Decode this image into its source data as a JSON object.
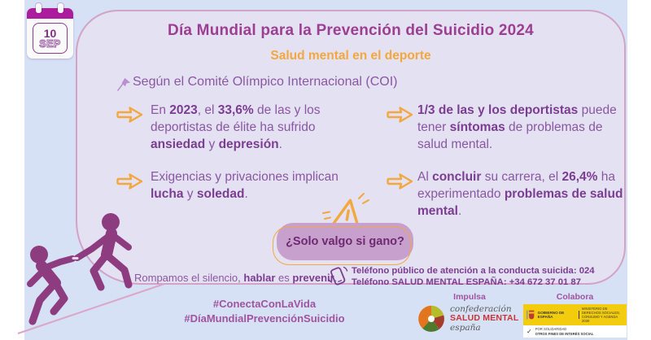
{
  "colors": {
    "blue_bg": "#d6e1f5",
    "panel_bg": "#e4e1f2",
    "accent_orange": "#f2a83e",
    "title_purple": "#9c3f92",
    "body_purple": "#8a57a2",
    "figure_purple": "#8c3c7f"
  },
  "calendar": {
    "day": "10",
    "month": "SEP"
  },
  "header": {
    "title": "Día Mundial para la Prevención del Suicidio 2024",
    "subtitle": "Salud mental en el deporte",
    "source_line": "Según el Comité Olímpico Internacional (COI)"
  },
  "facts": {
    "l1": [
      {
        "t": "En "
      },
      {
        "t": "2023",
        "b": true
      },
      {
        "t": ", el "
      },
      {
        "t": "33,6%",
        "b": true
      },
      {
        "t": " de las y los deportistas de élite ha sufrido "
      },
      {
        "t": "ansiedad",
        "b": true
      },
      {
        "t": " y "
      },
      {
        "t": "depresión",
        "b": true
      },
      {
        "t": "."
      }
    ],
    "l2": [
      {
        "t": "Exigencias y privaciones implican "
      },
      {
        "t": "lucha",
        "b": true
      },
      {
        "t": " y "
      },
      {
        "t": "soledad",
        "b": true
      },
      {
        "t": "."
      }
    ],
    "r1": [
      {
        "t": "1/3 de las y los deportistas",
        "b": true
      },
      {
        "t": " puede tener "
      },
      {
        "t": "síntomas",
        "b": true
      },
      {
        "t": " de problemas de salud mental."
      }
    ],
    "r2": [
      {
        "t": "Al "
      },
      {
        "t": "concluir",
        "b": true
      },
      {
        "t": " su carrera, el "
      },
      {
        "t": "26,4%",
        "b": true
      },
      {
        "t": " ha experimentado "
      },
      {
        "t": "problemas de salud mental",
        "b": true
      },
      {
        "t": "."
      }
    ]
  },
  "bubble": {
    "text": "¿Solo valgo si gano?"
  },
  "panel_footer": {
    "silence": [
      {
        "t": "Rompamos el silencio, "
      },
      {
        "t": "hablar",
        "b": true
      },
      {
        "t": " es "
      },
      {
        "t": "prevenir",
        "b": true
      },
      {
        "t": "."
      }
    ],
    "phone_line1": "Teléfono público de atención a la conducta suicida: 024",
    "phone_line2": "Teléfono SALUD MENTAL ESPAÑA: +34 672 37 01 87"
  },
  "bottom": {
    "hashtag1": "#ConectaConLaVida",
    "hashtag2": "#DíaMundialPrevenciónSuicidio",
    "impulsa_label": "Impulsa",
    "colabora_label": "Colabora",
    "confederacion": {
      "line1": "confederación",
      "line2": "SALUD MENTAL",
      "line3": "españa"
    },
    "gobierno": {
      "gov": "GOBIERNO DE ESPAÑA",
      "ministry": "MINISTERIO DE DERECHOS SOCIALES, CONSUMO Y AGENDA 2030",
      "check": "✓",
      "solidarity": "POR SOLIDARIDAD",
      "solidarity2": "OTROS FINES DE INTERÉS SOCIAL"
    }
  },
  "icons": [
    "calendar-icon",
    "pushpin-icon",
    "arrow-right-icon",
    "warning-triangle-icon",
    "phone-icon",
    "helping-figures-illustration",
    "confederacion-logo",
    "gobierno-logo"
  ]
}
